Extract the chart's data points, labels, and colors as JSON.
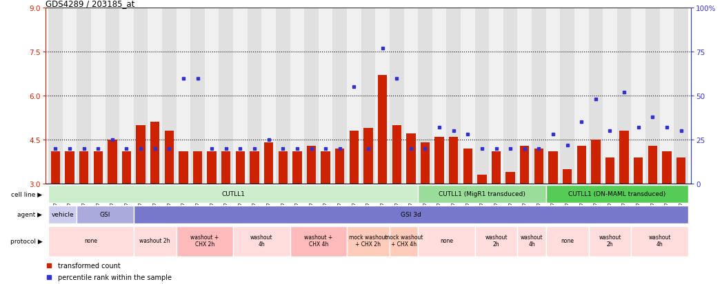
{
  "title": "GDS4289 / 203185_at",
  "sample_ids": [
    "GSM731500",
    "GSM731501",
    "GSM731502",
    "GSM731503",
    "GSM731504",
    "GSM731505",
    "GSM731518",
    "GSM731519",
    "GSM731520",
    "GSM731506",
    "GSM731507",
    "GSM731508",
    "GSM731509",
    "GSM731510",
    "GSM731511",
    "GSM731512",
    "GSM731513",
    "GSM731514",
    "GSM731515",
    "GSM731516",
    "GSM731517",
    "GSM731521",
    "GSM731522",
    "GSM731523",
    "GSM731524",
    "GSM731525",
    "GSM731526",
    "GSM731527",
    "GSM731528",
    "GSM731529",
    "GSM731531",
    "GSM731532",
    "GSM731533",
    "GSM731534",
    "GSM731535",
    "GSM731536",
    "GSM731537",
    "GSM731538",
    "GSM731539",
    "GSM731540",
    "GSM731541",
    "GSM731542",
    "GSM731543",
    "GSM731544",
    "GSM731545"
  ],
  "red_values": [
    4.1,
    4.1,
    4.1,
    4.1,
    4.5,
    4.1,
    5.0,
    5.1,
    4.8,
    4.1,
    4.1,
    4.1,
    4.1,
    4.1,
    4.1,
    4.4,
    4.1,
    4.1,
    4.3,
    4.1,
    4.2,
    4.8,
    4.9,
    6.7,
    5.0,
    4.7,
    4.4,
    4.6,
    4.6,
    4.2,
    3.3,
    4.1,
    3.4,
    4.3,
    4.2,
    4.1,
    3.5,
    4.3,
    4.5,
    3.9,
    4.8,
    3.9,
    4.3,
    4.1,
    3.9
  ],
  "blue_values": [
    20,
    20,
    20,
    20,
    25,
    20,
    20,
    20,
    20,
    60,
    60,
    20,
    20,
    20,
    20,
    25,
    20,
    20,
    20,
    20,
    20,
    55,
    20,
    77,
    60,
    20,
    20,
    32,
    30,
    28,
    20,
    20,
    20,
    20,
    20,
    28,
    22,
    35,
    48,
    30,
    52,
    32,
    38,
    32,
    30
  ],
  "ylim_left": [
    3.0,
    9.0
  ],
  "ylim_right": [
    0,
    100
  ],
  "yticks_left": [
    3.0,
    4.5,
    6.0,
    7.5,
    9.0
  ],
  "yticks_right": [
    0,
    25,
    50,
    75,
    100
  ],
  "hlines": [
    4.5,
    6.0,
    7.5
  ],
  "bar_color": "#cc2200",
  "dot_color": "#3333cc",
  "bar_bottom": 3.0,
  "cell_line_groups": [
    {
      "label": "CUTLL1",
      "start": 0,
      "end": 26,
      "color": "#cceecc"
    },
    {
      "label": "CUTLL1 (MigR1 transduced)",
      "start": 26,
      "end": 35,
      "color": "#99dd99"
    },
    {
      "label": "CUTLL1 (DN-MAML transduced)",
      "start": 35,
      "end": 45,
      "color": "#55cc55"
    }
  ],
  "agent_groups": [
    {
      "label": "vehicle",
      "start": 0,
      "end": 2,
      "color": "#ccccee"
    },
    {
      "label": "GSI",
      "start": 2,
      "end": 6,
      "color": "#aaaadd"
    },
    {
      "label": "GSI 3d",
      "start": 6,
      "end": 45,
      "color": "#7777cc"
    }
  ],
  "protocol_groups": [
    {
      "label": "none",
      "start": 0,
      "end": 6,
      "color": "#ffdddd"
    },
    {
      "label": "washout 2h",
      "start": 6,
      "end": 9,
      "color": "#ffdddd"
    },
    {
      "label": "washout +\nCHX 2h",
      "start": 9,
      "end": 13,
      "color": "#ffbbbb"
    },
    {
      "label": "washout\n4h",
      "start": 13,
      "end": 17,
      "color": "#ffdddd"
    },
    {
      "label": "washout +\nCHX 4h",
      "start": 17,
      "end": 21,
      "color": "#ffbbbb"
    },
    {
      "label": "mock washout\n+ CHX 2h",
      "start": 21,
      "end": 24,
      "color": "#ffccbb"
    },
    {
      "label": "mock washout\n+ CHX 4h",
      "start": 24,
      "end": 26,
      "color": "#ffccbb"
    },
    {
      "label": "none",
      "start": 26,
      "end": 30,
      "color": "#ffdddd"
    },
    {
      "label": "washout\n2h",
      "start": 30,
      "end": 33,
      "color": "#ffdddd"
    },
    {
      "label": "washout\n4h",
      "start": 33,
      "end": 35,
      "color": "#ffdddd"
    },
    {
      "label": "none",
      "start": 35,
      "end": 38,
      "color": "#ffdddd"
    },
    {
      "label": "washout\n2h",
      "start": 38,
      "end": 41,
      "color": "#ffdddd"
    },
    {
      "label": "washout\n4h",
      "start": 41,
      "end": 45,
      "color": "#ffdddd"
    }
  ],
  "legend_items": [
    {
      "label": "transformed count",
      "color": "#cc2200"
    },
    {
      "label": "percentile rank within the sample",
      "color": "#3333cc"
    }
  ],
  "xtick_bg_even": "#e0e0e0",
  "xtick_bg_odd": "#f0f0f0"
}
